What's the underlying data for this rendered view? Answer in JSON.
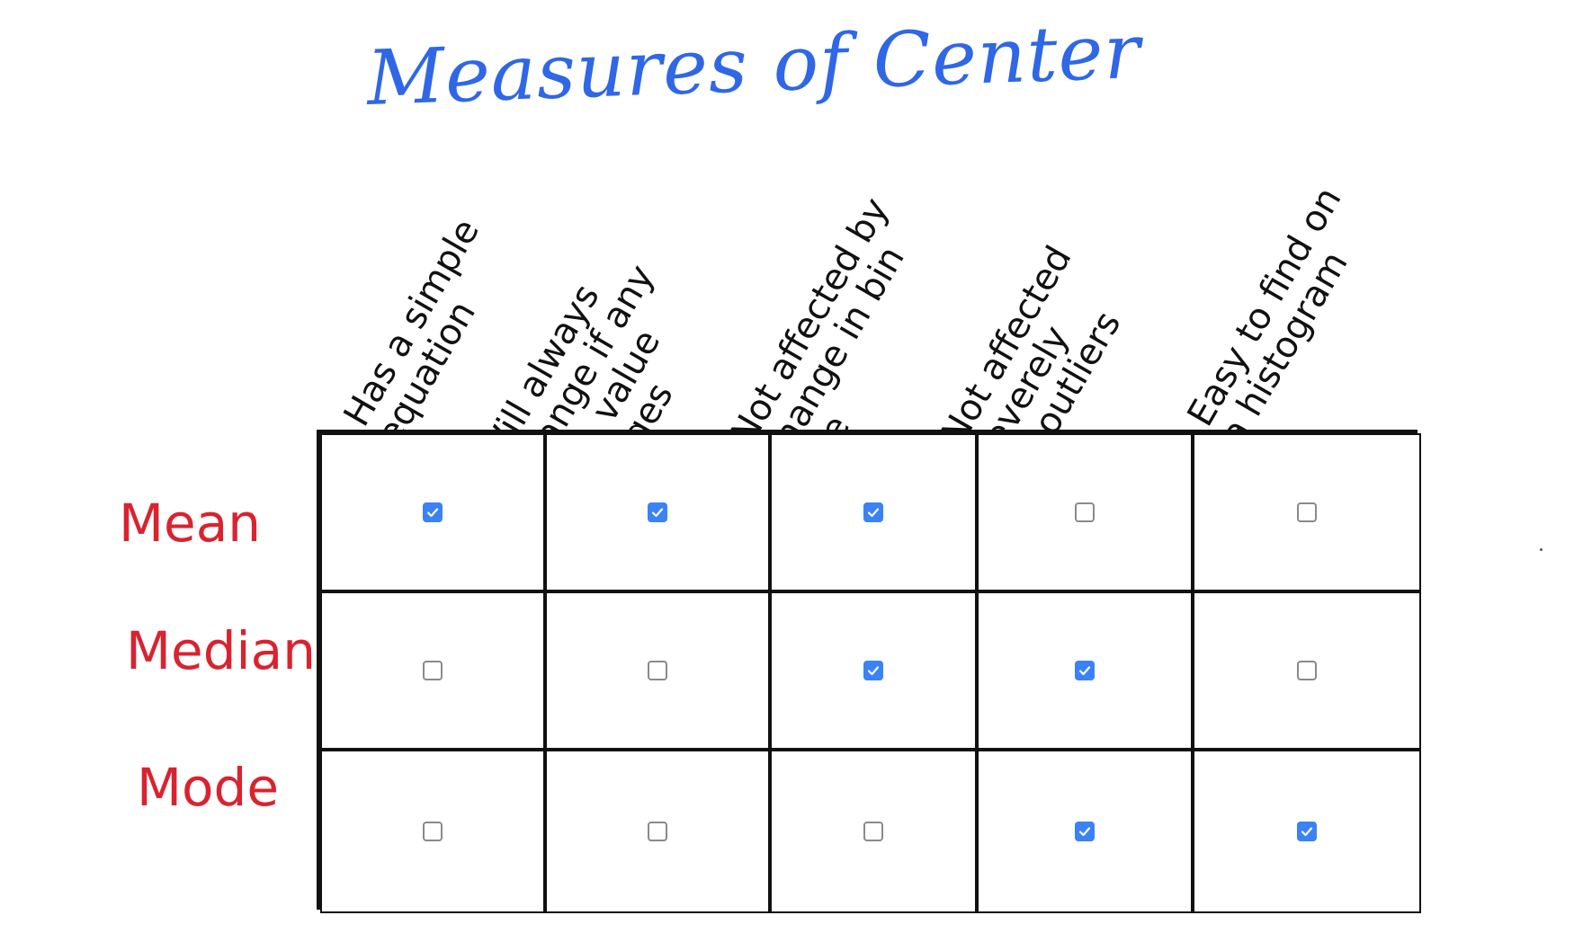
{
  "title": "Measures of Center",
  "columns": [
    {
      "label": "Has a simple\nequation"
    },
    {
      "label": "Will always\nchange if any\ndata value\nchanges"
    },
    {
      "label": "Not affected by\nchange in bin size"
    },
    {
      "label": "Not affected severely\nby outliers"
    },
    {
      "label": "Easy to find on\na histogram"
    }
  ],
  "rows": [
    {
      "label": "Mean",
      "values": [
        true,
        true,
        true,
        false,
        false
      ]
    },
    {
      "label": "Median",
      "values": [
        false,
        false,
        true,
        true,
        false
      ]
    },
    {
      "label": "Mode",
      "values": [
        false,
        false,
        false,
        true,
        true
      ]
    }
  ],
  "colors": {
    "title": "#2f67e6",
    "row_labels": "#d9232f",
    "checked": "#3b82f6",
    "unchecked_border": "#8a8a8a",
    "grid_line": "#111111"
  },
  "icons": {
    "checked": "checkmark-icon"
  }
}
